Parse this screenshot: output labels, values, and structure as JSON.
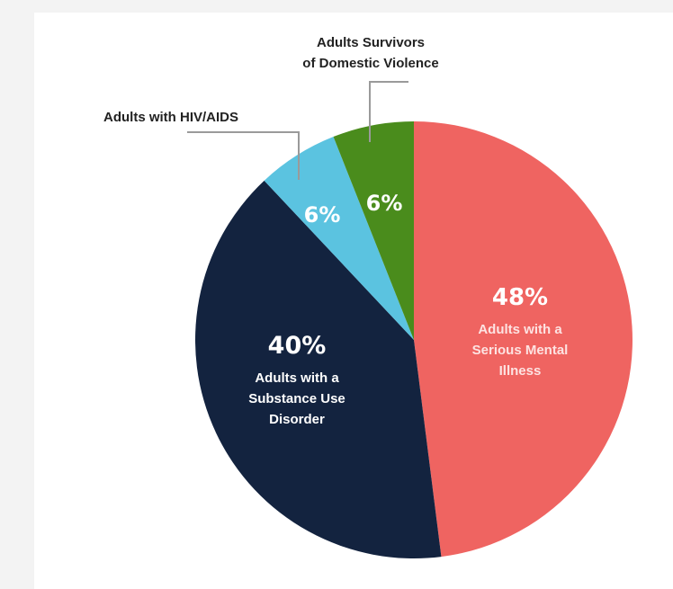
{
  "chart_data": {
    "type": "pie",
    "title": "",
    "slices": [
      {
        "label_lines": [
          "Adults with a",
          "Serious Mental",
          "Illness"
        ],
        "value": 48,
        "value_label": "48%",
        "color": "#ef6461",
        "label_color": "#fde3e2"
      },
      {
        "label_lines": [
          "Adults with a",
          "Substance Use",
          "Disorder"
        ],
        "value": 40,
        "value_label": "40%",
        "color": "#13233f",
        "label_color": "#ffffff"
      },
      {
        "label_lines": [
          "Adults with HIV/AIDS"
        ],
        "value": 6,
        "value_label": "6%",
        "color": "#5bc3e0",
        "label_color": "#222222"
      },
      {
        "label_lines": [
          "Adults Survivors",
          "of Domestic Violence"
        ],
        "value": 6,
        "value_label": "6%",
        "color": "#4a8c1c",
        "label_color": "#222222"
      }
    ]
  }
}
